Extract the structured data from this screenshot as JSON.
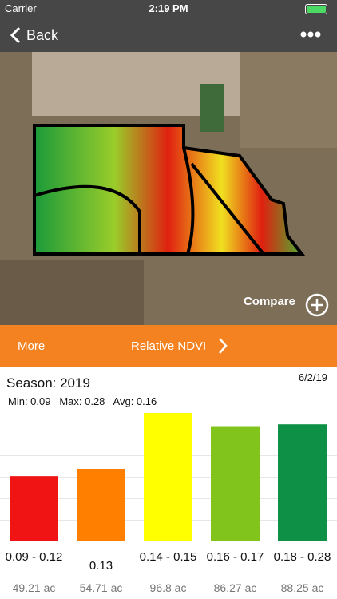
{
  "status_bar": {
    "carrier": "Carrier",
    "time": "2:19 PM"
  },
  "nav": {
    "back": "Back"
  },
  "map": {
    "compare": "Compare"
  },
  "toolbar": {
    "more": "More",
    "layer": "Relative NDVI"
  },
  "summary": {
    "season": "Season: 2019",
    "date": "6/2/19",
    "min": "Min: 0.09",
    "max": "Max: 0.28",
    "avg": "Avg: 0.16"
  },
  "chart_data": {
    "type": "bar",
    "categories": [
      "0.09 - 0.12",
      "0.13",
      "0.14 - 0.15",
      "0.16 - 0.17",
      "0.18 - 0.28"
    ],
    "values": [
      49.21,
      54.71,
      96.8,
      86.27,
      88.25
    ],
    "value_labels": [
      "49.21 ac",
      "54.71 ac",
      "96.8 ac",
      "86.27 ac",
      "88.25 ac"
    ],
    "colors": [
      "#f01414",
      "#ff7f00",
      "#ffff00",
      "#80c41c",
      "#0e9146"
    ],
    "ylim": [
      0,
      96.8
    ]
  }
}
